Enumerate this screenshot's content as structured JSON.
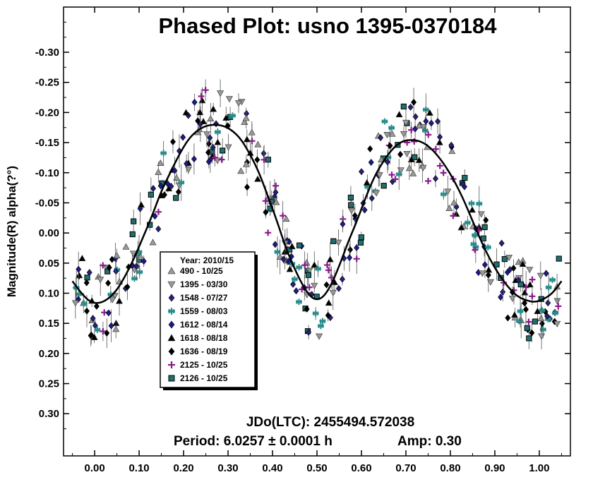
{
  "chart_data": {
    "type": "scatter",
    "title": "Phased Plot: usno 1395-0370184",
    "xlabel": "",
    "ylabel": "Magnitude(R) alpha(?°)",
    "xlim": [
      -0.07,
      1.07
    ],
    "ylim": [
      -0.375,
      0.37
    ],
    "y_inverted": true,
    "x_ticks": [
      0.0,
      0.1,
      0.2,
      0.3,
      0.4,
      0.5,
      0.6,
      0.7,
      0.8,
      0.9,
      1.0
    ],
    "x_tick_labels": [
      "0.00",
      "0.10",
      "0.20",
      "0.30",
      "0.40",
      "0.50",
      "0.60",
      "0.70",
      "0.80",
      "0.90",
      "1.00"
    ],
    "y_ticks": [
      -0.3,
      -0.25,
      -0.2,
      -0.15,
      -0.1,
      -0.05,
      0.0,
      0.05,
      0.1,
      0.15,
      0.2,
      0.25,
      0.3
    ],
    "y_tick_labels": [
      "-0.30",
      "-0.25",
      "-0.20",
      "-0.15",
      "-0.10",
      "-0.05",
      "0.00",
      "0.05",
      "0.10",
      "0.15",
      "0.20",
      "0.25",
      "0.30"
    ],
    "grid": false,
    "legend": {
      "placement": "lower-left",
      "title": "Year: 2010/15",
      "entries": [
        {
          "label": "490 - 10/25",
          "marker": "triangle-up",
          "color": "#999999"
        },
        {
          "label": "1395 - 03/30",
          "marker": "triangle-down",
          "color": "#999999"
        },
        {
          "label": "1548 - 07/27",
          "marker": "diamond",
          "color": "#22227a"
        },
        {
          "label": "1559 - 08/03",
          "marker": "asterisk",
          "color": "#2a8c8c"
        },
        {
          "label": "1612 - 08/14",
          "marker": "diamond",
          "color": "#1a1a8c"
        },
        {
          "label": "1618 - 08/18",
          "marker": "triangle-up",
          "color": "#000000"
        },
        {
          "label": "1636 - 08/19",
          "marker": "diamond",
          "color": "#000000"
        },
        {
          "label": "2125 - 10/25",
          "marker": "plus",
          "color": "#8c1a8c"
        },
        {
          "label": "2126 - 10/25",
          "marker": "square",
          "color": "#1e7070"
        }
      ]
    },
    "fit_curve": {
      "color": "#000000",
      "x": [
        -0.05,
        -0.03,
        -0.01,
        0.01,
        0.03,
        0.05,
        0.07,
        0.09,
        0.11,
        0.13,
        0.15,
        0.17,
        0.19,
        0.21,
        0.23,
        0.25,
        0.27,
        0.29,
        0.31,
        0.33,
        0.35,
        0.37,
        0.39,
        0.41,
        0.43,
        0.45,
        0.47,
        0.49,
        0.51,
        0.53,
        0.55,
        0.57,
        0.59,
        0.61,
        0.63,
        0.65,
        0.67,
        0.69,
        0.71,
        0.73,
        0.75,
        0.77,
        0.79,
        0.81,
        0.83,
        0.85,
        0.87,
        0.89,
        0.91,
        0.93,
        0.95,
        0.97,
        0.99,
        1.01,
        1.03,
        1.05
      ],
      "y": [
        0.08,
        0.1,
        0.115,
        0.117,
        0.11,
        0.095,
        0.07,
        0.04,
        0.005,
        -0.03,
        -0.07,
        -0.1,
        -0.13,
        -0.155,
        -0.17,
        -0.178,
        -0.18,
        -0.178,
        -0.17,
        -0.155,
        -0.13,
        -0.1,
        -0.06,
        -0.02,
        0.025,
        0.06,
        0.09,
        0.11,
        0.11,
        0.09,
        0.055,
        0.015,
        -0.02,
        -0.06,
        -0.095,
        -0.12,
        -0.14,
        -0.152,
        -0.155,
        -0.153,
        -0.145,
        -0.13,
        -0.11,
        -0.085,
        -0.055,
        -0.02,
        0.015,
        0.045,
        0.07,
        0.09,
        0.105,
        0.112,
        0.115,
        0.11,
        0.1,
        0.08
      ]
    },
    "annotations": [
      {
        "label": "JDo(LTC): 2455494.572038"
      },
      {
        "label": "Period: 6.0257 ± 0.0001 h"
      },
      {
        "label": "Amp: 0.30"
      }
    ]
  }
}
